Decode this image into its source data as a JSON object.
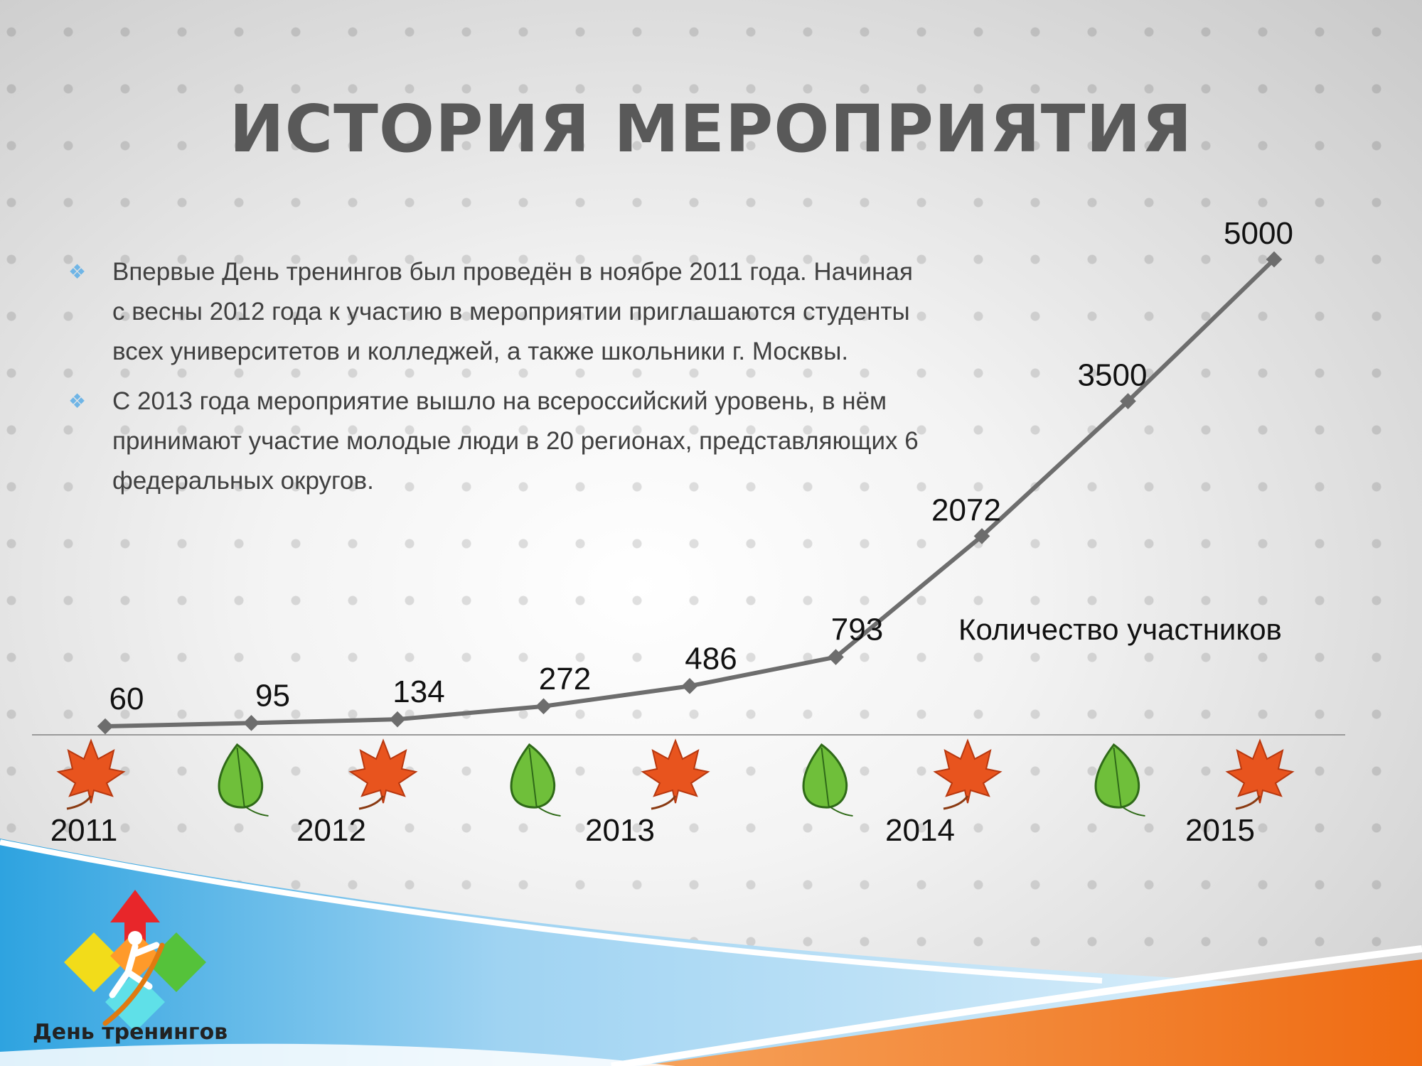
{
  "slide": {
    "title": "ИСТОРИЯ МЕРОПРИЯТИЯ",
    "bullets": [
      {
        "text": "Впервые День тренингов был проведён в ноябре 2011 года. Начиная с весны 2012 года к участию в мероприятии приглашаются студенты всех университетов и колледжей, а также школьники г. Москвы."
      },
      {
        "text": "С 2013 года мероприятие вышло на всероссийский уровень, в нём принимают участие молодые люди в 20 регионах, представляющих 6 федеральных округов."
      }
    ],
    "bullet_icon": "diamond-bullet-icon",
    "logo_text": "День тренингов"
  },
  "chart_data": {
    "type": "line",
    "series": [
      {
        "name": "Количество участников",
        "values": [
          60,
          95,
          134,
          272,
          486,
          793,
          2072,
          3500,
          5000
        ]
      }
    ],
    "x_labels": [
      "2011",
      "2012",
      "2013",
      "2014",
      "2015"
    ],
    "line_color": "#6d6d6d",
    "leaf_icons": [
      "maple-leaf-icon",
      "green-leaf-icon",
      "maple-leaf-icon",
      "green-leaf-icon",
      "maple-leaf-icon",
      "green-leaf-icon",
      "maple-leaf-icon",
      "green-leaf-icon",
      "maple-leaf-icon"
    ]
  },
  "colors": {
    "title": "#595959",
    "bullet": "#6fb5e6",
    "maple_leaf": "#e8541e",
    "green_leaf": "#6fbf3a",
    "band_blue": "#bfe3f7",
    "band_orange": "#f07a1a"
  }
}
